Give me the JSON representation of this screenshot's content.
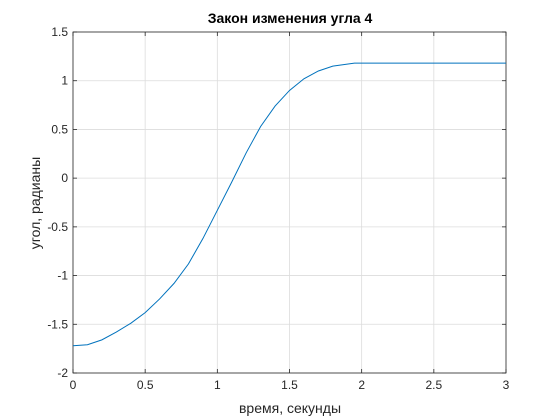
{
  "chart_data": {
    "type": "line",
    "title": "Закон изменения угла 4",
    "xlabel": "время, секунды",
    "ylabel": "угол, радианы",
    "xlim": [
      0,
      3
    ],
    "ylim": [
      -2,
      1.5
    ],
    "x_ticks": [
      0,
      0.5,
      1,
      1.5,
      2,
      2.5,
      3
    ],
    "x_tick_labels": [
      "0",
      "0.5",
      "1",
      "1.5",
      "2",
      "2.5",
      "3"
    ],
    "y_ticks": [
      -2,
      -1.5,
      -1,
      -0.5,
      0,
      0.5,
      1,
      1.5
    ],
    "y_tick_labels": [
      "-2",
      "-1.5",
      "-1",
      "-0.5",
      "0",
      "0.5",
      "1",
      "1.5"
    ],
    "grid": true,
    "series": [
      {
        "color": "#0072bd",
        "x": [
          0,
          0.1,
          0.2,
          0.3,
          0.4,
          0.5,
          0.6,
          0.7,
          0.8,
          0.9,
          1.0,
          1.1,
          1.2,
          1.3,
          1.4,
          1.5,
          1.6,
          1.7,
          1.8,
          1.9,
          1.95,
          2.0,
          2.5,
          3.0
        ],
        "values": [
          -1.72,
          -1.71,
          -1.66,
          -1.58,
          -1.49,
          -1.38,
          -1.24,
          -1.08,
          -0.88,
          -0.62,
          -0.33,
          -0.04,
          0.26,
          0.53,
          0.74,
          0.9,
          1.02,
          1.1,
          1.15,
          1.17,
          1.18,
          1.18,
          1.18,
          1.18
        ]
      }
    ]
  }
}
